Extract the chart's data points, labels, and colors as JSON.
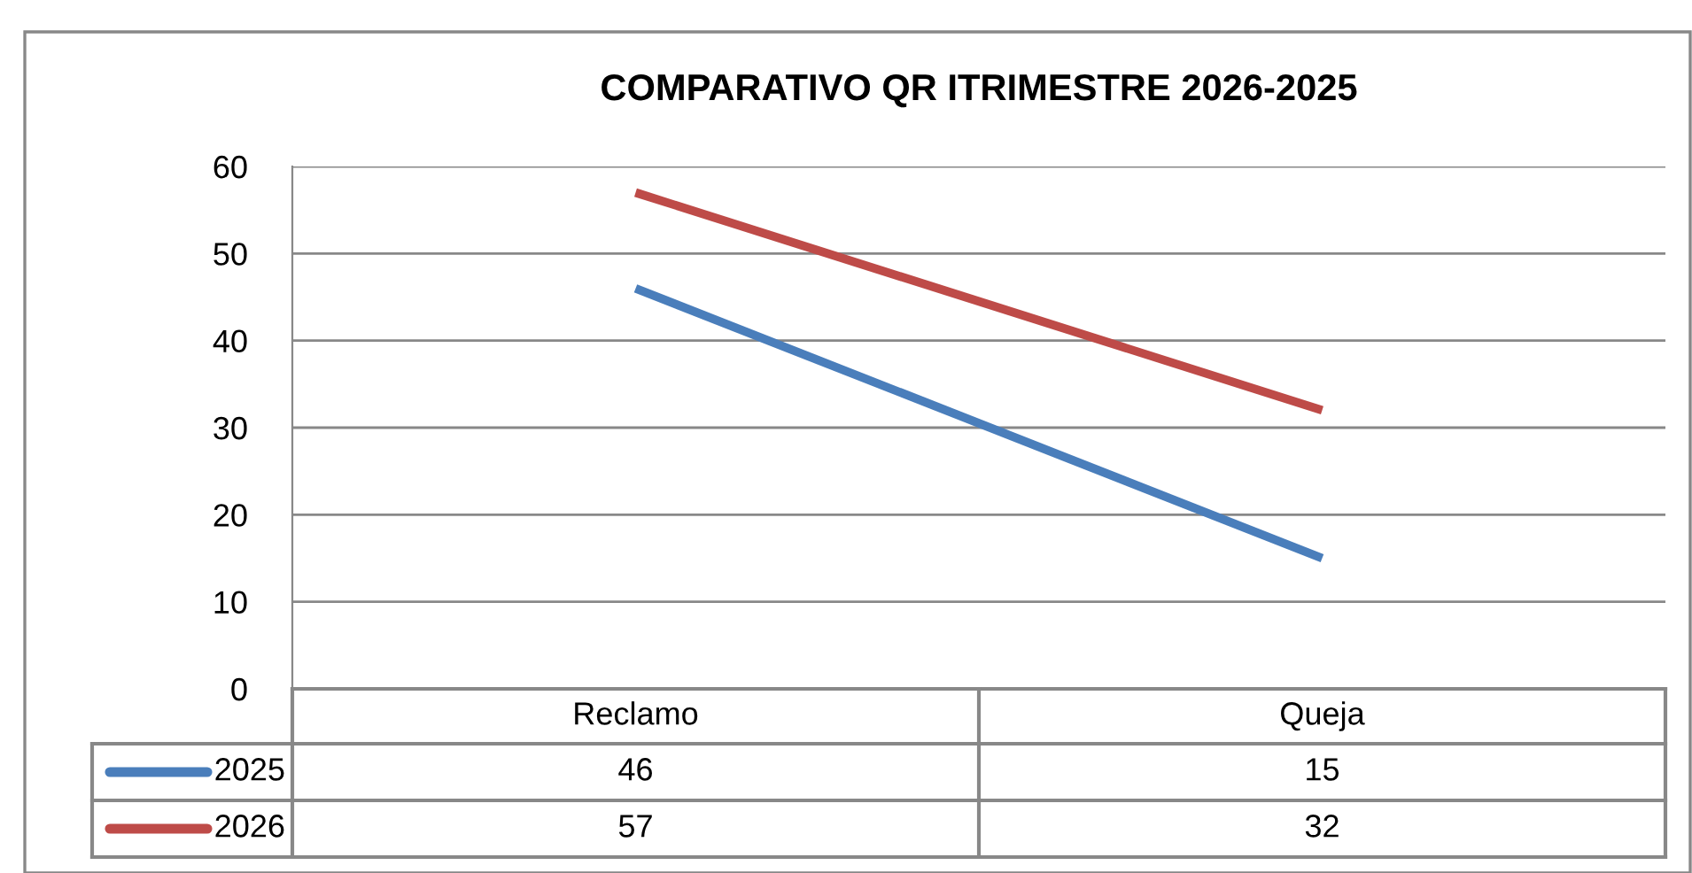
{
  "chart_data": {
    "type": "line",
    "title": "COMPARATIVO QR ITRIMESTRE 2026-2025",
    "categories": [
      "Reclamo",
      "Queja"
    ],
    "series": [
      {
        "name": "2025",
        "color": "#4a7ebb",
        "values": [
          46,
          15
        ]
      },
      {
        "name": "2026",
        "color": "#be4b48",
        "values": [
          57,
          32
        ]
      }
    ],
    "ylim": [
      0,
      60
    ],
    "yticks": [
      0,
      10,
      20,
      30,
      40,
      50,
      60
    ],
    "grid": "y",
    "data_labels": true,
    "legend": "bottom",
    "marker": "none",
    "line_style": "solid"
  }
}
